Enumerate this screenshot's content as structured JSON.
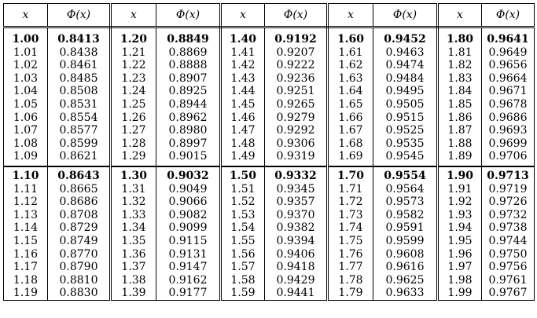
{
  "header": {
    "x": "x",
    "phi": "Φ(x)"
  },
  "blocks": [
    [
      [
        "1.00",
        "0.8413",
        "1.20",
        "0.8849",
        "1.40",
        "0.9192",
        "1.60",
        "0.9452",
        "1.80",
        "0.9641"
      ],
      [
        "1.01",
        "0.8438",
        "1.21",
        "0.8869",
        "1.41",
        "0.9207",
        "1.61",
        "0.9463",
        "1.81",
        "0.9649"
      ],
      [
        "1.02",
        "0.8461",
        "1.22",
        "0.8888",
        "1.42",
        "0.9222",
        "1.62",
        "0.9474",
        "1.82",
        "0.9656"
      ],
      [
        "1.03",
        "0.8485",
        "1.23",
        "0.8907",
        "1.43",
        "0.9236",
        "1.63",
        "0.9484",
        "1.83",
        "0.9664"
      ],
      [
        "1.04",
        "0.8508",
        "1.24",
        "0.8925",
        "1.44",
        "0.9251",
        "1.64",
        "0.9495",
        "1.84",
        "0.9671"
      ],
      [
        "1.05",
        "0.8531",
        "1.25",
        "0.8944",
        "1.45",
        "0.9265",
        "1.65",
        "0.9505",
        "1.85",
        "0.9678"
      ],
      [
        "1.06",
        "0.8554",
        "1.26",
        "0.8962",
        "1.46",
        "0.9279",
        "1.66",
        "0.9515",
        "1.86",
        "0.9686"
      ],
      [
        "1.07",
        "0.8577",
        "1.27",
        "0.8980",
        "1.47",
        "0.9292",
        "1.67",
        "0.9525",
        "1.87",
        "0.9693"
      ],
      [
        "1.08",
        "0.8599",
        "1.28",
        "0.8997",
        "1.48",
        "0.9306",
        "1.68",
        "0.9535",
        "1.88",
        "0.9699"
      ],
      [
        "1.09",
        "0.8621",
        "1.29",
        "0.9015",
        "1.49",
        "0.9319",
        "1.69",
        "0.9545",
        "1.89",
        "0.9706"
      ]
    ],
    [
      [
        "1.10",
        "0.8643",
        "1.30",
        "0.9032",
        "1.50",
        "0.9332",
        "1.70",
        "0.9554",
        "1.90",
        "0.9713"
      ],
      [
        "1.11",
        "0.8665",
        "1.31",
        "0.9049",
        "1.51",
        "0.9345",
        "1.71",
        "0.9564",
        "1.91",
        "0.9719"
      ],
      [
        "1.12",
        "0.8686",
        "1.32",
        "0.9066",
        "1.52",
        "0.9357",
        "1.72",
        "0.9573",
        "1.92",
        "0.9726"
      ],
      [
        "1.13",
        "0.8708",
        "1.33",
        "0.9082",
        "1.53",
        "0.9370",
        "1.73",
        "0.9582",
        "1.93",
        "0.9732"
      ],
      [
        "1.14",
        "0.8729",
        "1.34",
        "0.9099",
        "1.54",
        "0.9382",
        "1.74",
        "0.9591",
        "1.94",
        "0.9738"
      ],
      [
        "1.15",
        "0.8749",
        "1.35",
        "0.9115",
        "1.55",
        "0.9394",
        "1.75",
        "0.9599",
        "1.95",
        "0.9744"
      ],
      [
        "1.16",
        "0.8770",
        "1.36",
        "0.9131",
        "1.56",
        "0.9406",
        "1.76",
        "0.9608",
        "1.96",
        "0.9750"
      ],
      [
        "1.17",
        "0.8790",
        "1.37",
        "0.9147",
        "1.57",
        "0.9418",
        "1.77",
        "0.9616",
        "1.97",
        "0.9756"
      ],
      [
        "1.18",
        "0.8810",
        "1.38",
        "0.9162",
        "1.58",
        "0.9429",
        "1.78",
        "0.9625",
        "1.98",
        "0.9761"
      ],
      [
        "1.19",
        "0.8830",
        "1.39",
        "0.9177",
        "1.59",
        "0.9441",
        "1.79",
        "0.9633",
        "1.99",
        "0.9767"
      ]
    ]
  ]
}
